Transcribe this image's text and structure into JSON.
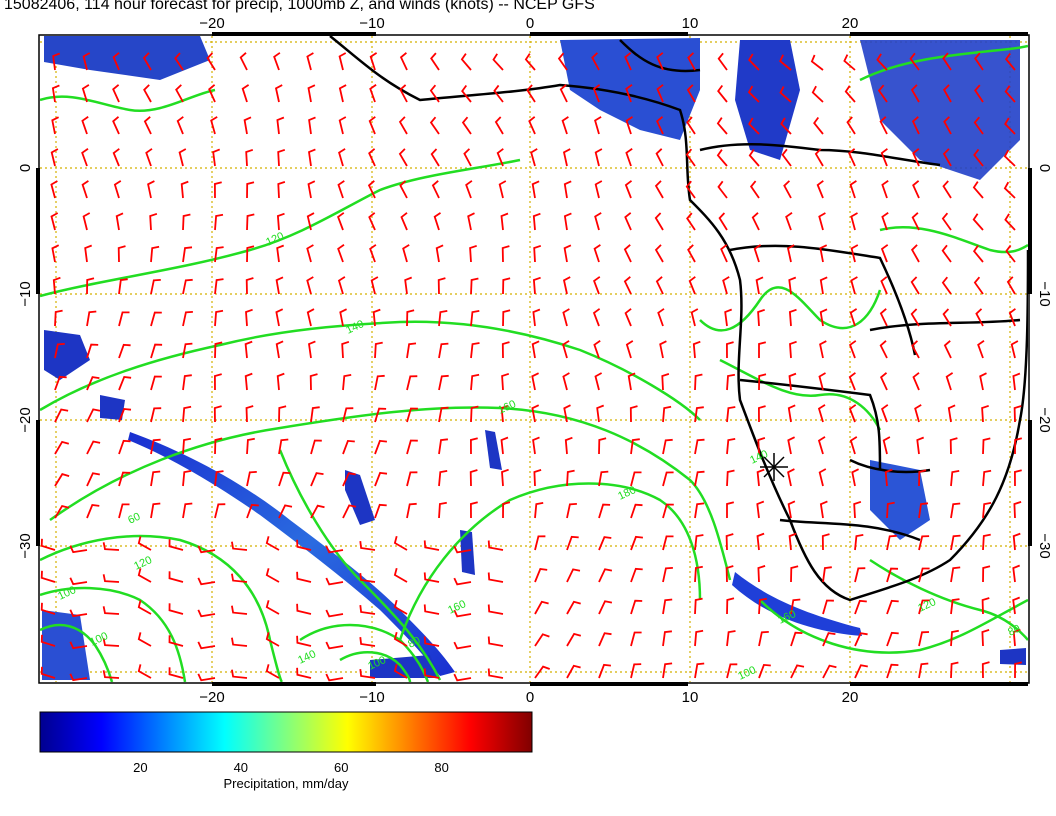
{
  "title": "15082406, 114 hour forecast for precip, 1000mb Z, and winds (knots) -- NCEP GFS",
  "map": {
    "lon_ticks": [
      "−20",
      "−10",
      "0",
      "10",
      "20"
    ],
    "lat_ticks": [
      "0",
      "−10",
      "−20",
      "−30"
    ],
    "contour_labels": [
      "120",
      "140",
      "160",
      "180",
      "160",
      "140",
      "120",
      "100",
      "120",
      "80",
      "60",
      "140",
      "160",
      "100",
      "100",
      "80",
      "100"
    ],
    "colors": {
      "background": "#ffffff",
      "graticule": "#d4b000",
      "coastline": "#000000",
      "contour": "#22dd22",
      "wind_barb": "#ff0000"
    },
    "marker": "star-marker"
  },
  "colorbar": {
    "label": "Precipitation, mm/day",
    "ticks": [
      "20",
      "40",
      "60",
      "80"
    ],
    "range": [
      0,
      98
    ],
    "colors": [
      "#00008f",
      "#0000ff",
      "#0080ff",
      "#00ffff",
      "#80ff80",
      "#ffff00",
      "#ff8000",
      "#ff0000",
      "#800000"
    ]
  }
}
